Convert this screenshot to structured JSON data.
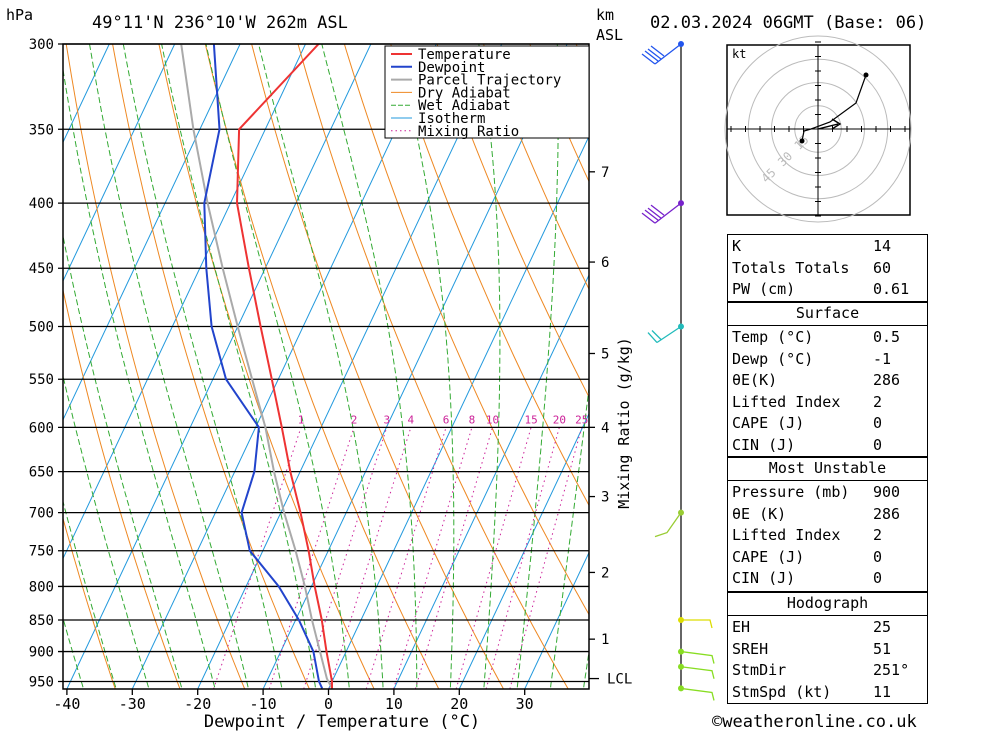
{
  "header": {
    "location": "49°11'N  236°10'W  262m  ASL",
    "datetime": "02.03.2024  06GMT  (Base: 06)",
    "left_unit": "hPa",
    "km_label": "km",
    "asl_label": "ASL"
  },
  "chart_data": {
    "type": "skew-t",
    "xlabel": "Dewpoint / Temperature (°C)",
    "ylabel_right": "Mixing Ratio (g/kg)",
    "x_ticks": [
      "-40",
      "-30",
      "-20",
      "-10",
      "0",
      "10",
      "20",
      "30"
    ],
    "p_levels": [
      "300",
      "350",
      "400",
      "450",
      "500",
      "550",
      "600",
      "650",
      "700",
      "750",
      "800",
      "850",
      "900",
      "950"
    ],
    "km_ticks": [
      {
        "label": "1",
        "p": 880
      },
      {
        "label": "2",
        "p": 780
      },
      {
        "label": "3",
        "p": 680
      },
      {
        "label": "4",
        "p": 600
      },
      {
        "label": "5",
        "p": 525
      },
      {
        "label": "6",
        "p": 445
      },
      {
        "label": "7",
        "p": 378
      }
    ],
    "lcl_label": "LCL",
    "lcl_p": 945,
    "mixing_ratio_labels": [
      "1",
      "2",
      "3",
      "4",
      "6",
      "8",
      "10",
      "15",
      "20",
      "25"
    ],
    "legend": [
      "Temperature",
      "Dewpoint",
      "Parcel Trajectory",
      "Dry Adiabat",
      "Wet Adiabat",
      "Isotherm",
      "Mixing Ratio"
    ],
    "colors": {
      "temperature": "#ee3333",
      "dewpoint": "#2244cc",
      "parcel": "#aaaaaa",
      "dry_adiabat": "#ee8822",
      "wet_adiabat": "#33aa33",
      "isotherm": "#2299dd",
      "mixing_ratio": "#cc2299"
    },
    "temperature": [
      {
        "p": 962,
        "t": 0.5
      },
      {
        "p": 950,
        "t": 0
      },
      {
        "p": 900,
        "t": -3
      },
      {
        "p": 850,
        "t": -6
      },
      {
        "p": 800,
        "t": -9.5
      },
      {
        "p": 750,
        "t": -13
      },
      {
        "p": 700,
        "t": -17
      },
      {
        "p": 650,
        "t": -21.5
      },
      {
        "p": 600,
        "t": -26
      },
      {
        "p": 550,
        "t": -31
      },
      {
        "p": 500,
        "t": -36.5
      },
      {
        "p": 450,
        "t": -42.5
      },
      {
        "p": 400,
        "t": -49
      },
      {
        "p": 350,
        "t": -54
      },
      {
        "p": 300,
        "t": -48
      }
    ],
    "dewpoint": [
      {
        "p": 962,
        "t": -1
      },
      {
        "p": 950,
        "t": -2
      },
      {
        "p": 900,
        "t": -5
      },
      {
        "p": 850,
        "t": -9.5
      },
      {
        "p": 800,
        "t": -15
      },
      {
        "p": 750,
        "t": -22
      },
      {
        "p": 700,
        "t": -26
      },
      {
        "p": 650,
        "t": -27
      },
      {
        "p": 600,
        "t": -29.5
      },
      {
        "p": 550,
        "t": -38
      },
      {
        "p": 500,
        "t": -44
      },
      {
        "p": 450,
        "t": -49
      },
      {
        "p": 400,
        "t": -54
      },
      {
        "p": 350,
        "t": -57
      },
      {
        "p": 300,
        "t": -64
      }
    ],
    "parcel": [
      {
        "p": 962,
        "t": 0.5
      },
      {
        "p": 945,
        "t": -1
      },
      {
        "p": 900,
        "t": -4
      },
      {
        "p": 850,
        "t": -7.5
      },
      {
        "p": 800,
        "t": -11
      },
      {
        "p": 750,
        "t": -15
      },
      {
        "p": 700,
        "t": -19.5
      },
      {
        "p": 650,
        "t": -24
      },
      {
        "p": 600,
        "t": -28.5
      },
      {
        "p": 550,
        "t": -34
      },
      {
        "p": 500,
        "t": -40
      },
      {
        "p": 450,
        "t": -46.5
      },
      {
        "p": 400,
        "t": -53.5
      },
      {
        "p": 350,
        "t": -61
      },
      {
        "p": 300,
        "t": -69
      }
    ],
    "wind_profile": [
      {
        "p": 300,
        "color": "#2255ee"
      },
      {
        "p": 400,
        "color": "#7722cc"
      },
      {
        "p": 500,
        "color": "#22bbbb"
      },
      {
        "p": 700,
        "color": "#99cc33"
      },
      {
        "p": 850,
        "color": "#dddd00"
      },
      {
        "p": 900,
        "color": "#88dd22"
      },
      {
        "p": 925,
        "color": "#88dd22"
      },
      {
        "p": 962,
        "color": "#88dd22"
      }
    ]
  },
  "hodograph": {
    "unit_label": "kt",
    "ring_labels": [
      "15",
      "30",
      "45"
    ]
  },
  "indices": {
    "rows": [
      {
        "label": "K",
        "value": "14"
      },
      {
        "label": "Totals Totals",
        "value": "60"
      },
      {
        "label": "PW (cm)",
        "value": "0.61"
      }
    ]
  },
  "surface": {
    "title": "Surface",
    "rows": [
      {
        "label": "Temp (°C)",
        "value": "0.5"
      },
      {
        "label": "Dewp (°C)",
        "value": "-1"
      },
      {
        "label": "θE(K)",
        "value": "286"
      },
      {
        "label": "Lifted Index",
        "value": "2"
      },
      {
        "label": "CAPE (J)",
        "value": "0"
      },
      {
        "label": "CIN (J)",
        "value": "0"
      }
    ]
  },
  "most_unstable": {
    "title": "Most Unstable",
    "rows": [
      {
        "label": "Pressure (mb)",
        "value": "900"
      },
      {
        "label": "θE (K)",
        "value": "286"
      },
      {
        "label": "Lifted Index",
        "value": "2"
      },
      {
        "label": "CAPE (J)",
        "value": "0"
      },
      {
        "label": "CIN (J)",
        "value": "0"
      }
    ]
  },
  "hodo_stats": {
    "title": "Hodograph",
    "rows": [
      {
        "label": "EH",
        "value": "25"
      },
      {
        "label": "SREH",
        "value": "51"
      },
      {
        "label": "StmDir",
        "value": "251°"
      },
      {
        "label": "StmSpd (kt)",
        "value": "11"
      }
    ]
  },
  "footer": {
    "copyright": "©weatheronline.co.uk"
  }
}
